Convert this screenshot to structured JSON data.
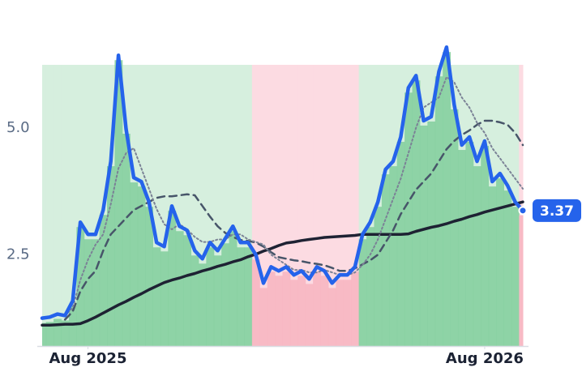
{
  "chart_data": {
    "type": "line",
    "categories": [
      null,
      null,
      null,
      null,
      null,
      null,
      "Aug 2025",
      null,
      null,
      null,
      null,
      null,
      null,
      null,
      null,
      null,
      null,
      null,
      null,
      null,
      null,
      null,
      null,
      null,
      null,
      null,
      null,
      null,
      null,
      null,
      null,
      null,
      null,
      null,
      null,
      null,
      null,
      null,
      null,
      null,
      null,
      null,
      null,
      null,
      null,
      null,
      null,
      null,
      null,
      null,
      null,
      null,
      null,
      null,
      null,
      null,
      null,
      null,
      "Aug 2026",
      null,
      null,
      null,
      null,
      null
    ],
    "series": [
      {
        "color": "#2563eb",
        "style": "solid",
        "width": 4.5,
        "values": [
          1.25,
          1.27,
          1.33,
          1.3,
          1.59,
          3.14,
          2.9,
          2.9,
          3.38,
          4.34,
          6.43,
          4.98,
          4.02,
          3.94,
          3.54,
          2.74,
          2.66,
          3.46,
          3.06,
          2.98,
          2.58,
          2.42,
          2.74,
          2.58,
          2.82,
          3.06,
          2.74,
          2.74,
          2.5,
          1.94,
          2.26,
          2.18,
          2.26,
          2.1,
          2.18,
          2.02,
          2.26,
          2.18,
          1.94,
          2.1,
          2.1,
          2.26,
          2.9,
          3.14,
          3.54,
          4.18,
          4.34,
          4.82,
          5.79,
          6.03,
          5.14,
          5.22,
          6.11,
          6.59,
          5.46,
          4.66,
          4.82,
          4.34,
          4.74,
          3.94,
          4.1,
          3.86,
          3.54,
          3.37
        ]
      },
      {
        "color": "#7b8296",
        "style": "dotted",
        "width": 2,
        "values": [
          null,
          null,
          null,
          1.3,
          1.45,
          2.0,
          2.4,
          2.7,
          2.9,
          3.5,
          4.2,
          4.5,
          4.6,
          4.2,
          3.8,
          3.4,
          3.1,
          3.0,
          3.1,
          3.0,
          2.85,
          2.75,
          2.75,
          2.8,
          2.8,
          2.9,
          2.9,
          2.8,
          2.75,
          2.7,
          2.5,
          2.4,
          2.3,
          2.2,
          2.2,
          2.15,
          2.15,
          2.2,
          2.15,
          2.1,
          2.1,
          2.15,
          2.3,
          2.5,
          2.8,
          3.2,
          3.6,
          4.0,
          4.5,
          5.0,
          5.4,
          5.5,
          5.6,
          6.0,
          5.9,
          5.6,
          5.4,
          5.1,
          4.9,
          4.6,
          4.4,
          4.2,
          4.0,
          3.8
        ]
      },
      {
        "color": "#475569",
        "style": "dashed",
        "width": 2.5,
        "values": [
          null,
          null,
          null,
          1.22,
          1.38,
          1.78,
          2.02,
          2.18,
          2.58,
          2.9,
          3.06,
          3.22,
          3.38,
          3.46,
          3.54,
          3.62,
          3.65,
          3.65,
          3.67,
          3.69,
          3.67,
          3.46,
          3.25,
          3.06,
          2.93,
          2.85,
          2.79,
          2.77,
          2.74,
          2.66,
          2.55,
          2.45,
          2.42,
          2.39,
          2.37,
          2.34,
          2.32,
          2.29,
          2.24,
          2.18,
          2.18,
          2.23,
          2.31,
          2.39,
          2.5,
          2.74,
          2.98,
          3.3,
          3.54,
          3.78,
          3.94,
          4.1,
          4.34,
          4.58,
          4.74,
          4.86,
          4.95,
          5.06,
          5.14,
          5.14,
          5.11,
          5.06,
          4.9,
          4.66
        ]
      },
      {
        "color": "#1e2233",
        "style": "solid",
        "width": 3.5,
        "values": [
          1.11,
          1.11,
          1.12,
          1.13,
          1.13,
          1.14,
          1.2,
          1.27,
          1.35,
          1.43,
          1.51,
          1.58,
          1.66,
          1.73,
          1.81,
          1.88,
          1.95,
          2.0,
          2.04,
          2.09,
          2.13,
          2.18,
          2.22,
          2.27,
          2.31,
          2.36,
          2.4,
          2.46,
          2.51,
          2.57,
          2.62,
          2.68,
          2.73,
          2.75,
          2.78,
          2.8,
          2.82,
          2.84,
          2.85,
          2.86,
          2.87,
          2.88,
          2.9,
          2.9,
          2.9,
          2.9,
          2.9,
          2.9,
          2.91,
          2.96,
          3.0,
          3.04,
          3.07,
          3.11,
          3.16,
          3.2,
          3.25,
          3.29,
          3.34,
          3.38,
          3.42,
          3.46,
          3.5,
          3.54
        ]
      }
    ],
    "up_color": "#86cfa0",
    "down_color": "#f7b6c2",
    "up_band_color": "#d6efde",
    "down_band_color": "#fcdbe2",
    "ylim": [
      0.7,
      7.2
    ],
    "yticks": [
      2.5,
      {
        "value": 5,
        "label": "5.0"
      }
    ],
    "grid": false
  }
}
